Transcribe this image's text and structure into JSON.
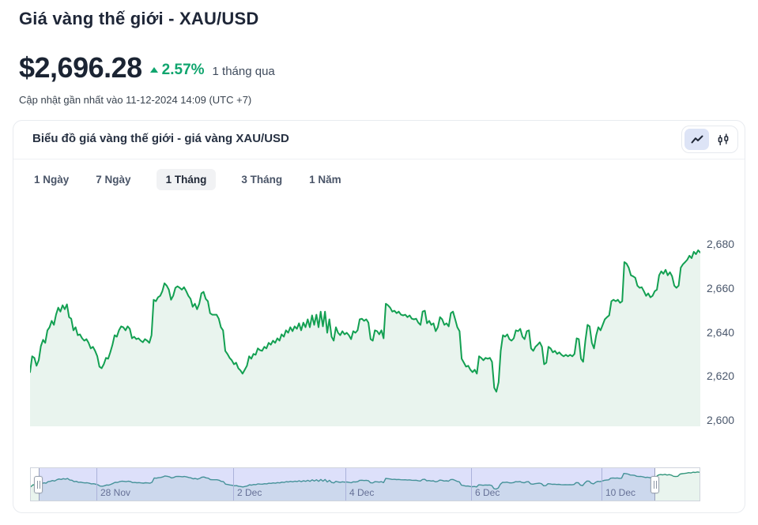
{
  "header": {
    "title": "Giá vàng thế giới - XAU/USD",
    "price": "$2,696.28",
    "change_percent": "2.57%",
    "change_period": "1 tháng qua",
    "last_updated": "Cập nhật gần nhất vào 11-12-2024 14:09 (UTC +7)"
  },
  "card": {
    "title": "Biểu đồ giá vàng thế giới - giá vàng XAU/USD",
    "toggle": {
      "selected": "line-chart",
      "options": [
        "line-chart",
        "candlestick-chart"
      ]
    },
    "tabs": [
      {
        "label": "1 Ngày",
        "active": false
      },
      {
        "label": "7 Ngày",
        "active": false
      },
      {
        "label": "1 Tháng",
        "active": true
      },
      {
        "label": "3 Tháng",
        "active": false
      },
      {
        "label": "1 Năm",
        "active": false
      }
    ]
  },
  "colors": {
    "line": "#13A052",
    "fill": "#E9F4EE",
    "accent_green": "#10A56E",
    "nav_line": "#33967C",
    "dark_text": "#1B2433"
  },
  "chart_data": {
    "type": "area",
    "series_name": "XAU/USD",
    "period": "1 Tháng",
    "ylim": [
      2600,
      2680
    ],
    "ytick_labels": [
      "2,680",
      "2,660",
      "2,640",
      "2,620",
      "2,600"
    ],
    "ytick_values": [
      2680,
      2660,
      2640,
      2620,
      2600
    ],
    "grid": false,
    "values": [
      2622.1,
      2629.3,
      2628.6,
      2625.0,
      2627.5,
      2633.9,
      2636.8,
      2635.4,
      2641.1,
      2642.5,
      2645.4,
      2643.6,
      2648.2,
      2651.4,
      2649.6,
      2652.5,
      2650.7,
      2652.9,
      2647.1,
      2646.4,
      2641.1,
      2642.5,
      2638.9,
      2639.3,
      2637.5,
      2636.4,
      2637.1,
      2635.4,
      2632.9,
      2633.6,
      2631.8,
      2629.3,
      2624.6,
      2623.9,
      2625.7,
      2628.6,
      2628.2,
      2631.1,
      2634.6,
      2638.9,
      2638.2,
      2641.1,
      2642.9,
      2642.5,
      2641.1,
      2642.9,
      2641.8,
      2637.5,
      2638.2,
      2637.1,
      2637.5,
      2636.4,
      2635.7,
      2637.1,
      2636.4,
      2635.4,
      2638.9,
      2655.0,
      2654.3,
      2656.1,
      2656.8,
      2658.9,
      2662.5,
      2661.4,
      2659.6,
      2655.0,
      2656.8,
      2660.4,
      2661.1,
      2660.4,
      2659.6,
      2660.7,
      2658.9,
      2656.8,
      2655.4,
      2651.8,
      2653.2,
      2650.7,
      2653.2,
      2657.9,
      2658.6,
      2655.4,
      2654.3,
      2648.9,
      2648.2,
      2648.2,
      2648.2,
      2646.4,
      2642.5,
      2641.1,
      2631.8,
      2630.4,
      2628.6,
      2627.5,
      2625.7,
      2626.4,
      2623.9,
      2622.9,
      2621.4,
      2623.2,
      2625.0,
      2629.3,
      2628.2,
      2630.4,
      2630.0,
      2632.9,
      2632.1,
      2631.8,
      2633.6,
      2632.9,
      2635.4,
      2634.6,
      2636.4,
      2635.4,
      2637.5,
      2636.4,
      2639.3,
      2638.2,
      2641.1,
      2640.0,
      2642.5,
      2640.7,
      2642.9,
      2641.8,
      2644.3,
      2641.1,
      2644.6,
      2642.5,
      2646.1,
      2642.5,
      2647.9,
      2643.6,
      2648.2,
      2642.5,
      2649.6,
      2642.9,
      2649.6,
      2640.0,
      2646.1,
      2638.2,
      2636.4,
      2642.5,
      2640.0,
      2638.9,
      2640.7,
      2639.3,
      2640.0,
      2638.9,
      2637.1,
      2640.7,
      2640.0,
      2641.1,
      2646.1,
      2646.4,
      2645.4,
      2646.1,
      2644.6,
      2637.1,
      2636.4,
      2641.1,
      2640.7,
      2639.3,
      2641.1,
      2637.5,
      2653.2,
      2652.5,
      2651.4,
      2649.6,
      2650.0,
      2648.9,
      2649.6,
      2648.2,
      2647.9,
      2648.2,
      2647.1,
      2647.9,
      2646.4,
      2646.1,
      2646.4,
      2644.6,
      2643.6,
      2649.6,
      2650.0,
      2644.3,
      2645.4,
      2643.6,
      2644.3,
      2640.7,
      2642.5,
      2647.1,
      2646.1,
      2643.6,
      2644.3,
      2642.9,
      2648.9,
      2649.6,
      2646.1,
      2642.5,
      2640.7,
      2628.2,
      2626.4,
      2624.6,
      2625.0,
      2623.2,
      2622.1,
      2623.2,
      2621.4,
      2629.3,
      2628.6,
      2627.5,
      2628.6,
      2628.2,
      2628.6,
      2626.8,
      2615.0,
      2613.2,
      2617.5,
      2631.8,
      2638.9,
      2638.2,
      2639.3,
      2637.1,
      2636.4,
      2637.5,
      2641.1,
      2640.7,
      2641.8,
      2638.2,
      2637.1,
      2640.7,
      2641.1,
      2632.9,
      2631.8,
      2633.6,
      2634.6,
      2635.7,
      2633.6,
      2625.7,
      2626.4,
      2633.6,
      2632.9,
      2631.1,
      2631.8,
      2630.4,
      2631.1,
      2630.0,
      2629.3,
      2630.0,
      2629.3,
      2630.0,
      2629.3,
      2630.4,
      2637.5,
      2637.1,
      2628.2,
      2626.8,
      2636.4,
      2643.6,
      2642.9,
      2635.4,
      2632.9,
      2638.9,
      2642.5,
      2641.1,
      2643.6,
      2646.1,
      2647.1,
      2647.9,
      2654.3,
      2655.0,
      2654.3,
      2655.0,
      2653.6,
      2654.3,
      2672.1,
      2671.4,
      2669.6,
      2666.1,
      2665.7,
      2665.0,
      2661.4,
      2660.4,
      2660.7,
      2658.9,
      2656.8,
      2657.9,
      2656.1,
      2656.8,
      2658.9,
      2659.6,
      2666.1,
      2667.9,
      2666.8,
      2668.6,
      2666.1,
      2667.5,
      2665.7,
      2661.4,
      2660.4,
      2661.4,
      2669.6,
      2671.1,
      2672.1,
      2673.2,
      2675.0,
      2673.9,
      2676.8,
      2675.7,
      2677.5,
      2676.4
    ],
    "navigator": {
      "date_labels": [
        "28 Nov",
        "2 Dec",
        "4 Dec",
        "6 Dec",
        "10 Dec"
      ],
      "date_fracs": [
        0.098,
        0.303,
        0.471,
        0.658,
        0.853
      ],
      "selection_start_frac": 0.012,
      "selection_end_frac": 0.934
    }
  }
}
